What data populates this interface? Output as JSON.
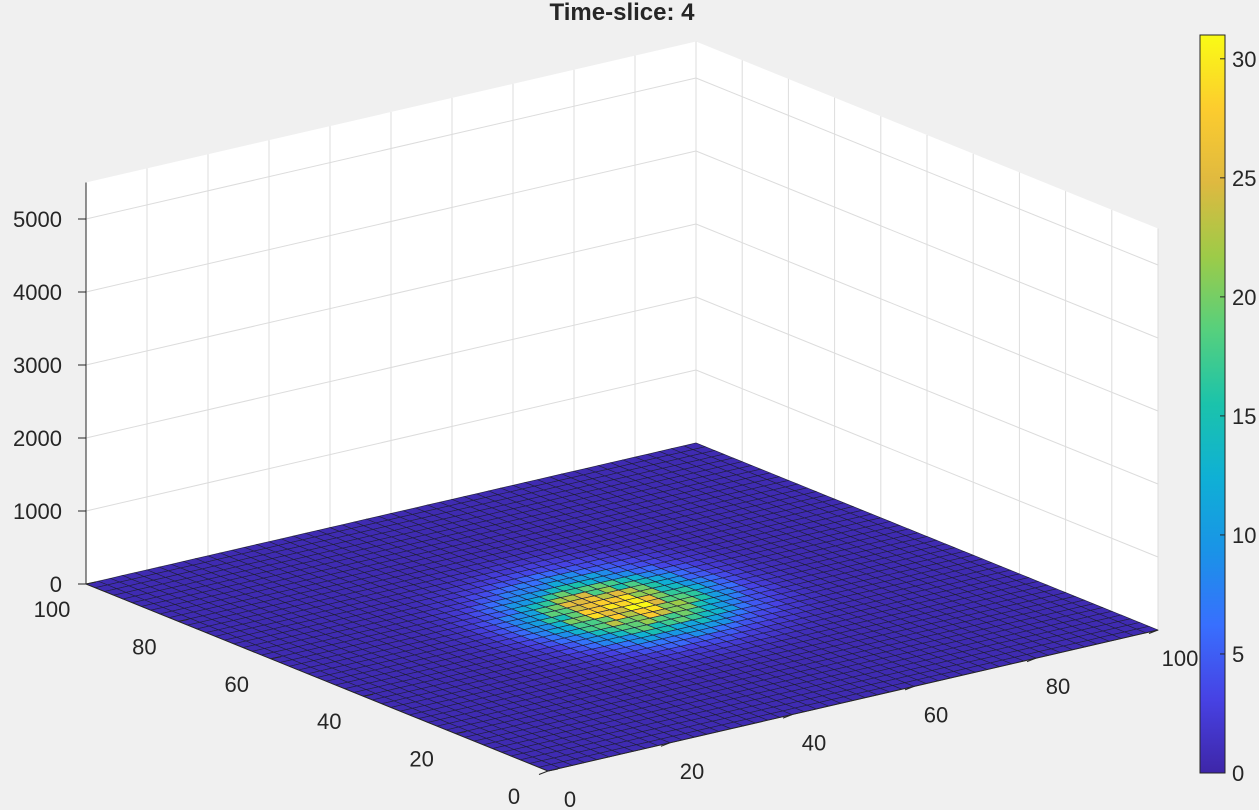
{
  "chart_data": {
    "type": "surface",
    "title": "Time-slice: 4",
    "x": {
      "range": [
        0,
        100
      ],
      "ticks": [
        0,
        20,
        40,
        60,
        80,
        100
      ],
      "tick_labels": [
        "0",
        "20",
        "40",
        "60",
        "80",
        "100"
      ]
    },
    "y": {
      "range": [
        0,
        100
      ],
      "ticks": [
        0,
        20,
        40,
        60,
        80,
        100
      ],
      "tick_labels": [
        "0",
        "20",
        "40",
        "60",
        "80",
        "100"
      ]
    },
    "z": {
      "range": [
        0,
        5500
      ],
      "ticks": [
        0,
        1000,
        2000,
        3000,
        4000,
        5000
      ],
      "tick_labels": [
        "0",
        "1000",
        "2000",
        "3000",
        "4000",
        "5000"
      ]
    },
    "surface": {
      "description_peak_center": [
        50,
        50
      ],
      "peak_value": 31,
      "peak_spread": 9,
      "base_value": 0.5
    },
    "colorbar": {
      "range": [
        0,
        31
      ],
      "ticks": [
        0,
        5,
        10,
        15,
        20,
        25,
        30
      ],
      "tick_labels": [
        "0",
        "5",
        "10",
        "15",
        "20",
        "25",
        "30"
      ],
      "colormap": "parula"
    },
    "grid": true,
    "colors": {
      "background": "#f0f0f0",
      "axes_background": "#ffffff",
      "grid": "#dcdcdc",
      "text": "#262626",
      "mesh_edge": "#1f1f3a"
    }
  }
}
